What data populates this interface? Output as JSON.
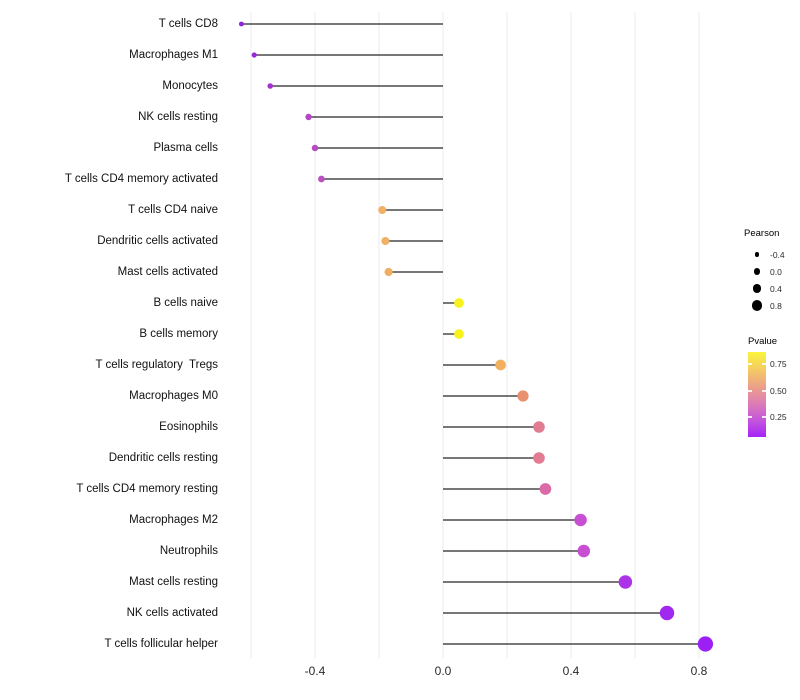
{
  "chart_data": {
    "type": "lollipop",
    "title": "",
    "xlabel": "",
    "ylabel": "",
    "x_axis": {
      "tick_labels": [
        "-0.4",
        "0.0",
        "0.4",
        "0.8"
      ],
      "tick_values": [
        -0.4,
        0.0,
        0.4,
        0.8
      ],
      "gridline_values": [
        -0.6,
        -0.4,
        -0.2,
        0.0,
        0.2,
        0.4,
        0.6,
        0.8
      ],
      "range": [
        -0.72,
        1.1
      ]
    },
    "baseline_x": 0.0,
    "grid_on": true,
    "grid_color": "#EBEBEB",
    "stem_color": "#4A4A4A",
    "points": [
      {
        "label": "T cells CD8",
        "pearson": -0.63,
        "color": "#8F23D8"
      },
      {
        "label": "Macrophages M1",
        "pearson": -0.59,
        "color": "#9929D4"
      },
      {
        "label": "Monocytes",
        "pearson": -0.54,
        "color": "#A232CF"
      },
      {
        "label": "NK cells resting",
        "pearson": -0.42,
        "color": "#B446C5"
      },
      {
        "label": "Plasma cells",
        "pearson": -0.4,
        "color": "#B84BC3"
      },
      {
        "label": "T cells CD4 memory activated",
        "pearson": -0.38,
        "color": "#BB50C1"
      },
      {
        "label": "T cells CD4 naive",
        "pearson": -0.19,
        "color": "#F0B166"
      },
      {
        "label": "Dendritic cells activated",
        "pearson": -0.18,
        "color": "#F0B166"
      },
      {
        "label": "Mast cells activated",
        "pearson": -0.17,
        "color": "#EFAE62"
      },
      {
        "label": "B cells naive",
        "pearson": 0.05,
        "color": "#F7F21D"
      },
      {
        "label": "B cells memory",
        "pearson": 0.05,
        "color": "#F7F21D"
      },
      {
        "label": "T cells regulatory  Tregs",
        "pearson": 0.18,
        "color": "#F0B05E"
      },
      {
        "label": "Macrophages M0",
        "pearson": 0.25,
        "color": "#E9906E"
      },
      {
        "label": "Eosinophils",
        "pearson": 0.3,
        "color": "#E27C92"
      },
      {
        "label": "Dendritic cells resting",
        "pearson": 0.3,
        "color": "#E27C92"
      },
      {
        "label": "T cells CD4 memory resting",
        "pearson": 0.32,
        "color": "#DA6BA8"
      },
      {
        "label": "Macrophages M2",
        "pearson": 0.43,
        "color": "#C94FD2"
      },
      {
        "label": "Neutrophils",
        "pearson": 0.44,
        "color": "#C94FD2"
      },
      {
        "label": "Mast cells resting",
        "pearson": 0.57,
        "color": "#AD33E9"
      },
      {
        "label": "NK cells activated",
        "pearson": 0.7,
        "color": "#A128F0"
      },
      {
        "label": "T cells follicular helper",
        "pearson": 0.82,
        "color": "#9C1FF4"
      }
    ],
    "legends": {
      "size": {
        "title": "Pearson",
        "entries": [
          "-0.4",
          "0.0",
          "0.4",
          "0.8"
        ]
      },
      "color": {
        "title": "Pvalue",
        "tick_labels": [
          "0.75",
          "0.50",
          "0.25"
        ],
        "gradient_stops": [
          "#FAF53C",
          "#F5CC61",
          "#ECA287",
          "#DD7EB4",
          "#C557DB",
          "#A524F6"
        ]
      }
    }
  }
}
